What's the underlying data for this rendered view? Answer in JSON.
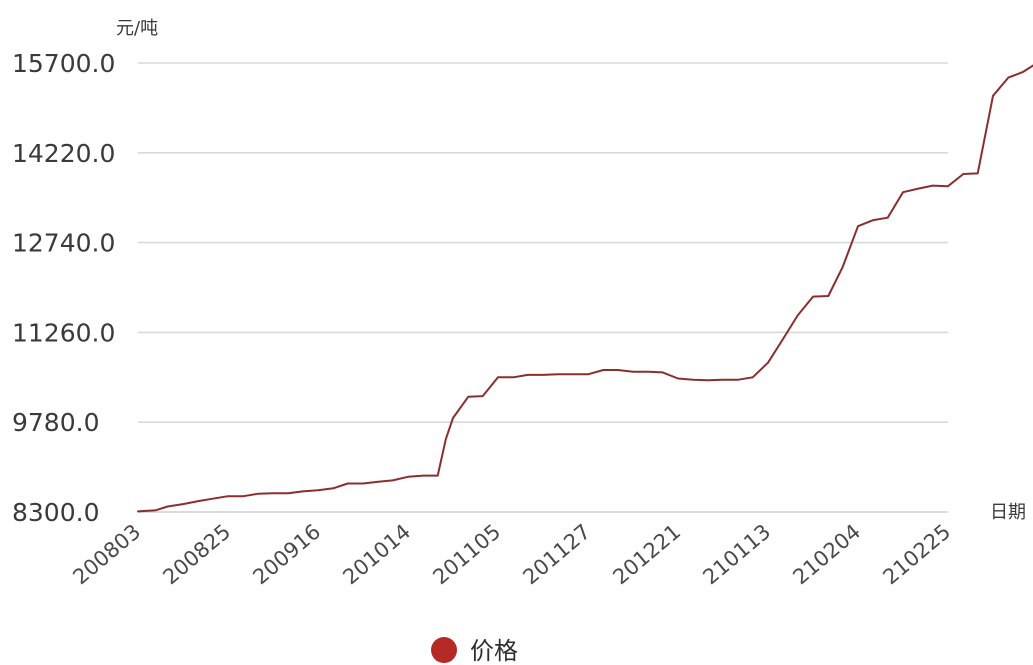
{
  "chart_data": {
    "type": "line",
    "ylabel": "元/吨",
    "xlabel": "日期",
    "ylim": [
      8300,
      15700
    ],
    "yticks": [
      "8300.0",
      "9780.0",
      "11260.0",
      "12740.0",
      "14220.0",
      "15700.0"
    ],
    "xticks": [
      "200803",
      "200825",
      "200916",
      "201014",
      "201105",
      "201127",
      "201221",
      "210113",
      "210204",
      "210225"
    ],
    "grid": true,
    "legend_position": "bottom-center",
    "series": [
      {
        "name": "价格",
        "color": "#8b2e2e",
        "legend_color": "#b52a25",
        "points": [
          [
            0,
            8310
          ],
          [
            0.2,
            8330
          ],
          [
            0.33,
            8390
          ],
          [
            0.5,
            8430
          ],
          [
            0.67,
            8480
          ],
          [
            0.83,
            8520
          ],
          [
            1.0,
            8560
          ],
          [
            1.17,
            8560
          ],
          [
            1.33,
            8600
          ],
          [
            1.5,
            8610
          ],
          [
            1.67,
            8610
          ],
          [
            1.83,
            8640
          ],
          [
            2.0,
            8660
          ],
          [
            2.17,
            8690
          ],
          [
            2.33,
            8770
          ],
          [
            2.5,
            8770
          ],
          [
            2.67,
            8800
          ],
          [
            2.83,
            8820
          ],
          [
            3.0,
            8880
          ],
          [
            3.17,
            8900
          ],
          [
            3.33,
            8900
          ],
          [
            3.42,
            9500
          ],
          [
            3.5,
            9850
          ],
          [
            3.67,
            10200
          ],
          [
            3.83,
            10210
          ],
          [
            4.0,
            10520
          ],
          [
            4.17,
            10520
          ],
          [
            4.33,
            10560
          ],
          [
            4.5,
            10560
          ],
          [
            4.67,
            10570
          ],
          [
            4.83,
            10570
          ],
          [
            5.0,
            10570
          ],
          [
            5.17,
            10640
          ],
          [
            5.33,
            10640
          ],
          [
            5.5,
            10610
          ],
          [
            5.67,
            10610
          ],
          [
            5.83,
            10600
          ],
          [
            6.0,
            10500
          ],
          [
            6.17,
            10480
          ],
          [
            6.33,
            10470
          ],
          [
            6.5,
            10480
          ],
          [
            6.67,
            10480
          ],
          [
            6.83,
            10520
          ],
          [
            7.0,
            10760
          ],
          [
            7.17,
            11160
          ],
          [
            7.33,
            11540
          ],
          [
            7.5,
            11850
          ],
          [
            7.67,
            11860
          ],
          [
            7.83,
            12340
          ],
          [
            8.0,
            13010
          ],
          [
            8.17,
            13110
          ],
          [
            8.33,
            13150
          ],
          [
            8.5,
            13570
          ],
          [
            8.67,
            13630
          ],
          [
            8.83,
            13680
          ],
          [
            9.0,
            13670
          ],
          [
            9.17,
            13870
          ],
          [
            9.33,
            13880
          ],
          [
            9.5,
            15160
          ],
          [
            9.67,
            15460
          ],
          [
            9.83,
            15550
          ],
          [
            10.0,
            15710
          ]
        ]
      }
    ]
  }
}
